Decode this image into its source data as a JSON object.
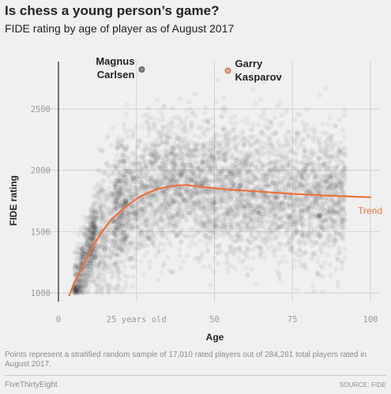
{
  "header": {
    "title": "Is chess a young person’s game?",
    "subtitle": "FIDE rating by age of player as of August 2017"
  },
  "footer": {
    "note": "Points represent a stratified random sample of 17,010 rated players out of 284,261 total players rated in August 2017.",
    "brand": "FiveThirtyEight",
    "source": "SOURCE: FIDE"
  },
  "colors": {
    "trend": "#ed713a",
    "points": "#333333",
    "background": "#f0f0f0",
    "carlsen_dot": "#8a8a8a",
    "kasparov_dot": "#e8a482"
  },
  "chart_data": {
    "type": "scatter",
    "xlabel": "Age",
    "ylabel": "FIDE rating",
    "xlim": [
      0,
      100
    ],
    "ylim": [
      930,
      2880
    ],
    "x_ticks": [
      {
        "value": 0,
        "label": "0"
      },
      {
        "value": 25,
        "label": "25 years old"
      },
      {
        "value": 50,
        "label": "50"
      },
      {
        "value": 75,
        "label": "75"
      },
      {
        "value": 100,
        "label": "100"
      }
    ],
    "y_ticks": [
      1000,
      1500,
      2000,
      2500
    ],
    "grid": true,
    "sample_size": 17010,
    "total_players": 284261,
    "trend": {
      "label": "Trend",
      "x": [
        3.5,
        5,
        8,
        11,
        14,
        17,
        20,
        23,
        26,
        29,
        32,
        35,
        38,
        41,
        44,
        48,
        55,
        65,
        75,
        85,
        95,
        100
      ],
      "y": [
        980,
        1080,
        1230,
        1380,
        1500,
        1600,
        1670,
        1730,
        1785,
        1820,
        1848,
        1865,
        1877,
        1880,
        1870,
        1858,
        1842,
        1825,
        1808,
        1795,
        1785,
        1780
      ]
    },
    "annotations": [
      {
        "name": "Magnus Carlsen",
        "lines": [
          "Magnus",
          "Carlsen"
        ],
        "age": 26.7,
        "rating": 2822
      },
      {
        "name": "Garry Kasparov",
        "lines": [
          "Garry",
          "Kasparov"
        ],
        "age": 54.3,
        "rating": 2812
      }
    ]
  }
}
